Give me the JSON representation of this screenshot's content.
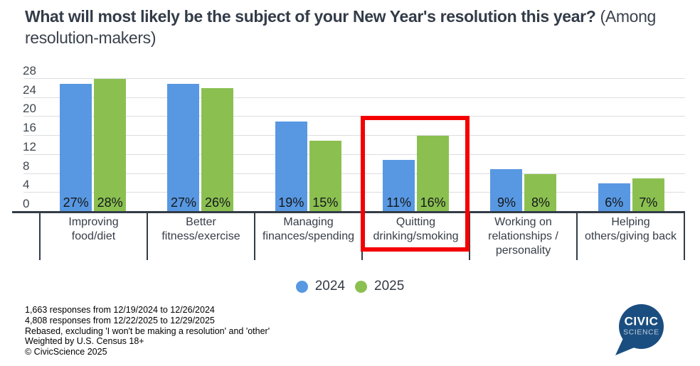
{
  "title": {
    "main": "What will most likely be the subject of your New Year's resolution this year?",
    "subtitle": "(Among resolution-makers)"
  },
  "chart_data": {
    "type": "bar",
    "categories": [
      "Improving\nfood/diet",
      "Better\nfitness/exercise",
      "Managing\nfinances/spending",
      "Quitting\ndrinking/smoking",
      "Working on\nrelationships /\npersonality",
      "Helping\nothers/giving back"
    ],
    "series": [
      {
        "name": "2024",
        "color": "#5898e2",
        "values": [
          27,
          27,
          19,
          11,
          9,
          6
        ]
      },
      {
        "name": "2025",
        "color": "#8bc051",
        "values": [
          28,
          26,
          15,
          16,
          8,
          7
        ]
      }
    ],
    "value_suffix": "%",
    "ylim": [
      0,
      28
    ],
    "y_ticks": [
      0,
      4,
      8,
      12,
      16,
      20,
      24,
      28
    ],
    "grid": true,
    "legend_position": "bottom",
    "highlight": {
      "category_index": 3,
      "category": "Quitting drinking/smoking",
      "color": "#f40000"
    },
    "colors": {
      "axis": "#333d47",
      "gridline": "#dcdddf"
    }
  },
  "footer": {
    "lines": [
      "1,663 responses from 12/19/2024 to 12/26/2024",
      "4,808 responses from 12/22/2025 to 12/29/2025",
      "Rebased, excluding 'I won't be making a resolution' and 'other'",
      "Weighted by U.S. Census 18+",
      "© CivicScience 2025"
    ]
  },
  "logo": {
    "line1": "CIVIC",
    "line2": "SCIENCE",
    "bubble_color": "#1b4e80"
  }
}
